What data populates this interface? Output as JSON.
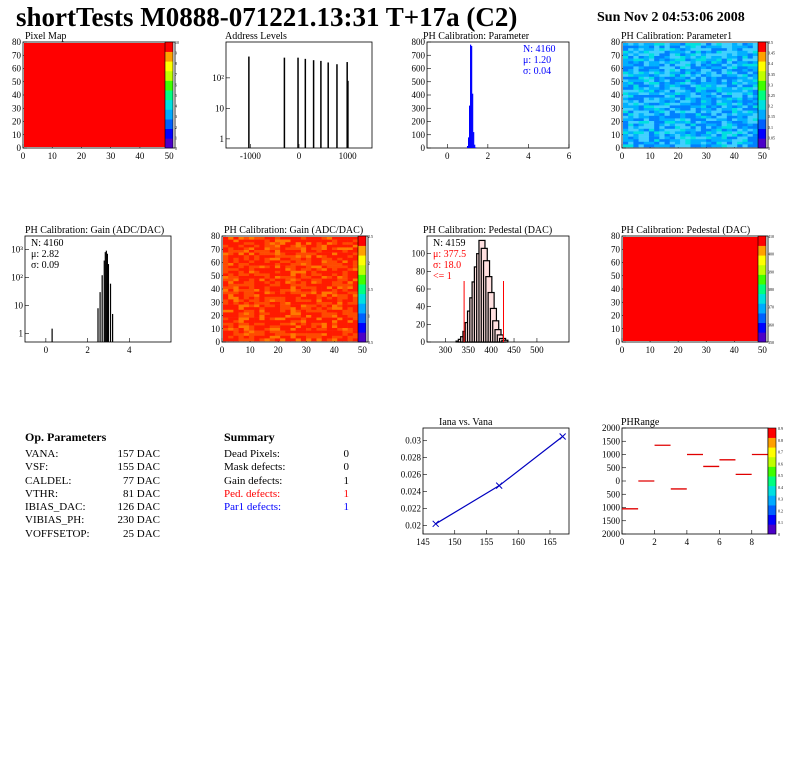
{
  "header": {
    "title": "shortTests M0888-071221.13:31 T+17a (C2)",
    "date": "Sun Nov  2 04:53:06 2008"
  },
  "params": {
    "title": "Op. Parameters",
    "rows": [
      {
        "k": "VANA:",
        "v": "157 DAC"
      },
      {
        "k": "VSF:",
        "v": "155 DAC"
      },
      {
        "k": "CALDEL:",
        "v": "77 DAC"
      },
      {
        "k": "VTHR:",
        "v": "81 DAC"
      },
      {
        "k": "IBIAS_DAC:",
        "v": "126 DAC"
      },
      {
        "k": "VIBIAS_PH:",
        "v": "230 DAC"
      },
      {
        "k": "VOFFSETOP:",
        "v": "25 DAC"
      }
    ]
  },
  "summary": {
    "title": "Summary",
    "rows": [
      {
        "k": "Dead Pixels:",
        "v": "0",
        "color": "#000000"
      },
      {
        "k": "Mask defects:",
        "v": "0",
        "color": "#000000"
      },
      {
        "k": "Gain defects:",
        "v": "1",
        "color": "#000000"
      },
      {
        "k": "Ped. defects:",
        "v": "1",
        "color": "#ff0000"
      },
      {
        "k": "Par1 defects:",
        "v": "1",
        "color": "#0000ff"
      }
    ]
  },
  "chart_data": [
    {
      "type": "heatmap",
      "title": "Pixel Map",
      "xlim": [
        0,
        52
      ],
      "ylim": [
        0,
        80
      ],
      "xticks": [
        "0",
        "10",
        "20",
        "30",
        "40",
        "50"
      ],
      "yticks": [
        "0",
        "10",
        "20",
        "30",
        "40",
        "50",
        "60",
        "70",
        "80"
      ],
      "fill": "#ff0000",
      "colorbar": [
        "0",
        "1",
        "2",
        "3",
        "4",
        "5",
        "6",
        "7",
        "8",
        "9",
        "10"
      ]
    },
    {
      "type": "bar",
      "title": "Address Levels",
      "xlim": [
        -1500,
        1500
      ],
      "log_y": true,
      "xticks": [
        "-1000",
        "0",
        "1000"
      ],
      "yticks": [
        "1",
        "10",
        "10²"
      ],
      "x": [
        -1030,
        -300,
        -20,
        130,
        300,
        450,
        600,
        780,
        990,
        1005
      ],
      "values": [
        500,
        460,
        460,
        420,
        380,
        360,
        320,
        280,
        330,
        80
      ]
    },
    {
      "type": "bar",
      "title": "PH Calibration: Parameter",
      "xlim": [
        -1,
        6
      ],
      "ylim": [
        0,
        800
      ],
      "xticks": [
        "0",
        "2",
        "4",
        "6"
      ],
      "yticks": [
        "0",
        "100",
        "200",
        "300",
        "400",
        "500",
        "600",
        "700",
        "800"
      ],
      "x": [
        1.0,
        1.05,
        1.1,
        1.15,
        1.2,
        1.25,
        1.3,
        1.35,
        1.4
      ],
      "values": [
        15,
        80,
        320,
        780,
        770,
        410,
        120,
        25,
        5
      ],
      "stats": [
        "N: 4160",
        "μ: 1.20",
        "σ: 0.04"
      ],
      "stats_color": "#0000ff"
    },
    {
      "type": "heatmap",
      "title": "PH Calibration: Parameter1",
      "xlim": [
        0,
        52
      ],
      "ylim": [
        0,
        80
      ],
      "xticks": [
        "0",
        "10",
        "20",
        "30",
        "40",
        "50"
      ],
      "yticks": [
        "0",
        "10",
        "20",
        "30",
        "40",
        "50",
        "60",
        "70",
        "80"
      ],
      "colorbar": [
        "0",
        "0.05",
        "0.1",
        "0.15",
        "0.2",
        "0.25",
        "0.3",
        "0.35",
        "0.4",
        "0.45",
        "0.5"
      ]
    },
    {
      "type": "bar",
      "title": "PH Calibration: Gain (ADC/DAC)",
      "xlim": [
        -1,
        6
      ],
      "log_y": true,
      "xticks": [
        "0",
        "2",
        "4"
      ],
      "yticks": [
        "1",
        "10",
        "10²",
        "10³"
      ],
      "x": [
        0.3,
        2.5,
        2.6,
        2.7,
        2.8,
        2.85,
        2.9,
        2.95,
        3.0,
        3.1,
        3.2
      ],
      "values": [
        1.5,
        8,
        30,
        120,
        400,
        800,
        900,
        700,
        300,
        60,
        5
      ],
      "stats": [
        "N: 4160",
        "μ: 2.82",
        "σ: 0.09"
      ],
      "stats_color": "#000000"
    },
    {
      "type": "heatmap",
      "title": "PH Calibration: Gain (ADC/DAC)",
      "xlim": [
        0,
        52
      ],
      "ylim": [
        0,
        80
      ],
      "xticks": [
        "0",
        "10",
        "20",
        "30",
        "40",
        "50"
      ],
      "yticks": [
        "0",
        "10",
        "20",
        "30",
        "40",
        "50",
        "60",
        "70",
        "80"
      ],
      "colorbar": [
        "0.5",
        "1",
        "1.5",
        "2",
        "2.5"
      ]
    },
    {
      "type": "bar",
      "title": "PH Calibration: Pedestal (DAC)",
      "xlim": [
        260,
        570
      ],
      "ylim": [
        0,
        120
      ],
      "xticks": [
        "300",
        "350",
        "400",
        "450",
        "500"
      ],
      "yticks": [
        "0",
        "20",
        "40",
        "60",
        "80",
        "100"
      ],
      "x": [
        330,
        335,
        340,
        345,
        350,
        355,
        360,
        365,
        370,
        375,
        380,
        385,
        390,
        395,
        400,
        405,
        410,
        415,
        420,
        425,
        430
      ],
      "values": [
        1,
        3,
        6,
        12,
        22,
        35,
        50,
        68,
        85,
        100,
        115,
        106,
        92,
        74,
        56,
        38,
        24,
        14,
        8,
        4,
        2
      ],
      "cuts": [
        341,
        427
      ],
      "stats": [
        "N: 4159",
        "μ: 377.5",
        "σ: 18.0",
        "<= 1"
      ],
      "stats_color": "#ff0000"
    },
    {
      "type": "heatmap",
      "title": "PH Calibration: Pedestal (DAC)",
      "xlim": [
        0,
        52
      ],
      "ylim": [
        0,
        80
      ],
      "xticks": [
        "0",
        "10",
        "20",
        "30",
        "40",
        "50"
      ],
      "yticks": [
        "0",
        "10",
        "20",
        "30",
        "40",
        "50",
        "60",
        "70",
        "80"
      ],
      "fill": "#ff0000",
      "colorbar": [
        "350",
        "360",
        "370",
        "380",
        "390",
        "400",
        "410"
      ]
    },
    {
      "type": "line",
      "title": "Iana vs. Vana",
      "xlim": [
        145,
        168
      ],
      "ylim": [
        0.019,
        0.0315
      ],
      "xticks": [
        "145",
        "150",
        "155",
        "160",
        "165"
      ],
      "yticks": [
        "0.02",
        "0.022",
        "0.024",
        "0.026",
        "0.028",
        "0.03"
      ],
      "x": [
        147,
        157,
        167
      ],
      "y": [
        0.0202,
        0.0247,
        0.0305
      ]
    },
    {
      "type": "scatter",
      "title": "PHRange",
      "xlim": [
        0,
        9
      ],
      "ylim": [
        -2000,
        2000
      ],
      "xticks": [
        "0",
        "2",
        "4",
        "6",
        "8"
      ],
      "yticks": [
        "2000",
        "1500",
        "1000",
        "500",
        "0",
        "500",
        "1000",
        "1500",
        "2000"
      ],
      "x": [
        0.5,
        1.5,
        2.5,
        3.5,
        4.5,
        5.5,
        6.5,
        7.5,
        8.5
      ],
      "values": [
        -1050,
        0,
        1350,
        -300,
        1000,
        550,
        800,
        250,
        1000
      ],
      "colorbar": [
        "0",
        "0.1",
        "0.2",
        "0.3",
        "0.4",
        "0.5",
        "0.6",
        "0.7",
        "0.8",
        "0.9"
      ]
    }
  ]
}
